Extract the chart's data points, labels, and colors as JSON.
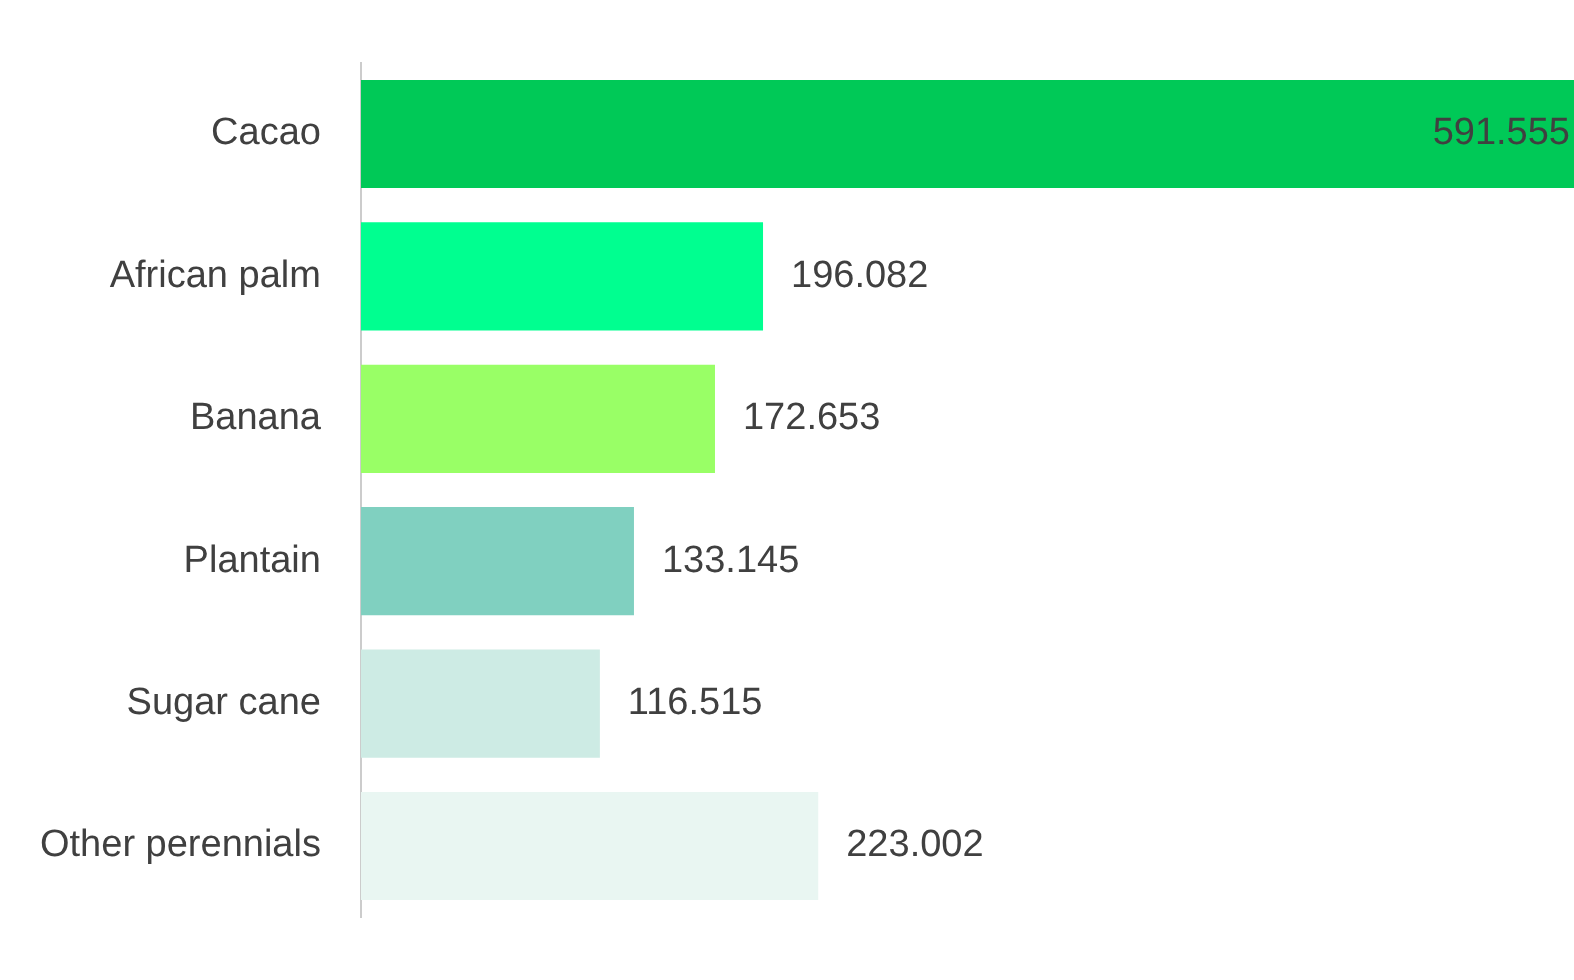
{
  "chart_data": {
    "type": "bar",
    "orientation": "horizontal",
    "categories": [
      "Cacao",
      "African palm",
      "Banana",
      "Plantain",
      "Sugar cane",
      "Other perennials"
    ],
    "values": [
      591.555,
      196.082,
      172.653,
      133.145,
      116.515,
      223.002
    ],
    "colors": [
      "#00c957",
      "#00ff90",
      "#99ff66",
      "#80d0c0",
      "#cdebe4",
      "#e9f6f2"
    ],
    "data_labels": true,
    "legend": false
  }
}
